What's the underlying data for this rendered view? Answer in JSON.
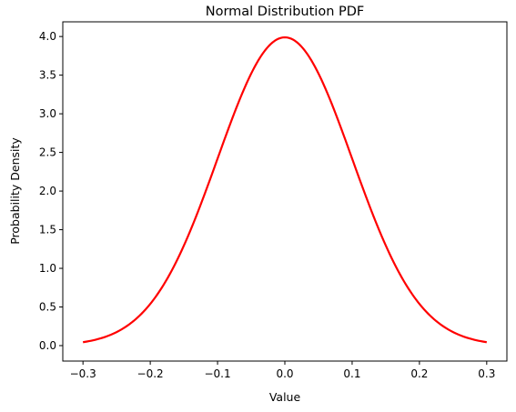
{
  "chart_data": {
    "type": "line",
    "title": "Normal Distribution PDF",
    "xlabel": "Value",
    "ylabel": "Probability Density",
    "xlim": [
      -0.33,
      0.33
    ],
    "ylim": [
      -0.2,
      4.19
    ],
    "xticks": [
      -0.3,
      -0.2,
      -0.1,
      0.0,
      0.1,
      0.2,
      0.3
    ],
    "xtick_labels": [
      "−0.3",
      "−0.2",
      "−0.1",
      "0.0",
      "0.1",
      "0.2",
      "0.3"
    ],
    "yticks": [
      0.0,
      0.5,
      1.0,
      1.5,
      2.0,
      2.5,
      3.0,
      3.5,
      4.0
    ],
    "ytick_labels": [
      "0.0",
      "0.5",
      "1.0",
      "1.5",
      "2.0",
      "2.5",
      "3.0",
      "3.5",
      "4.0"
    ],
    "grid": false,
    "legend": "none",
    "series": [
      {
        "color": "#ff0000",
        "x": [
          -0.3,
          -0.27,
          -0.24,
          -0.21,
          -0.18,
          -0.15,
          -0.12,
          -0.09,
          -0.06,
          -0.03,
          0.0,
          0.03,
          0.06,
          0.09,
          0.12,
          0.15,
          0.18,
          0.21,
          0.24,
          0.27,
          0.3
        ],
        "y": [
          0.044,
          0.104,
          0.224,
          0.44,
          0.79,
          1.295,
          1.942,
          2.661,
          3.332,
          3.814,
          3.989,
          3.814,
          3.332,
          2.661,
          1.942,
          1.295,
          0.79,
          0.44,
          0.224,
          0.104,
          0.044
        ]
      }
    ]
  }
}
